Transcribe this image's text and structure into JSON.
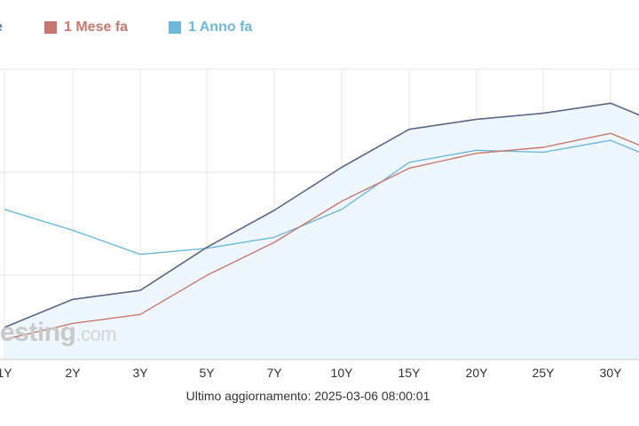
{
  "legend": {
    "items": [
      {
        "label": "e",
        "color": "#5a7ea6"
      },
      {
        "label": "1 Mese fa",
        "color": "#c8776e"
      },
      {
        "label": "1 Anno fa",
        "color": "#6db8db"
      }
    ]
  },
  "watermark": {
    "main": "esting",
    "suffix": ".com"
  },
  "footer": {
    "updated": "Ultimo aggiornamento: 2025-03-06 08:00:01"
  },
  "chart_data": {
    "type": "line",
    "categories": [
      "1Y",
      "2Y",
      "3Y",
      "5Y",
      "7Y",
      "10Y",
      "15Y",
      "20Y",
      "25Y",
      "30Y"
    ],
    "series": [
      {
        "name": "",
        "color": "#5d6685",
        "fill": "#eef7fd",
        "values": [
          2.32,
          2.6,
          2.69,
          3.12,
          3.49,
          3.92,
          4.3,
          4.4,
          4.46,
          4.56
        ]
      },
      {
        "name": "1 Mese fa",
        "color": "#c8776e",
        "values": [
          2.2,
          2.36,
          2.45,
          2.84,
          3.17,
          3.58,
          3.91,
          4.06,
          4.12,
          4.26
        ]
      },
      {
        "name": "1 Anno fa",
        "color": "#6db8db",
        "values": [
          3.5,
          3.29,
          3.05,
          3.11,
          3.22,
          3.5,
          3.97,
          4.09,
          4.07,
          4.19
        ]
      }
    ],
    "ylim": [
      2.0,
      4.9
    ],
    "grid": true
  }
}
